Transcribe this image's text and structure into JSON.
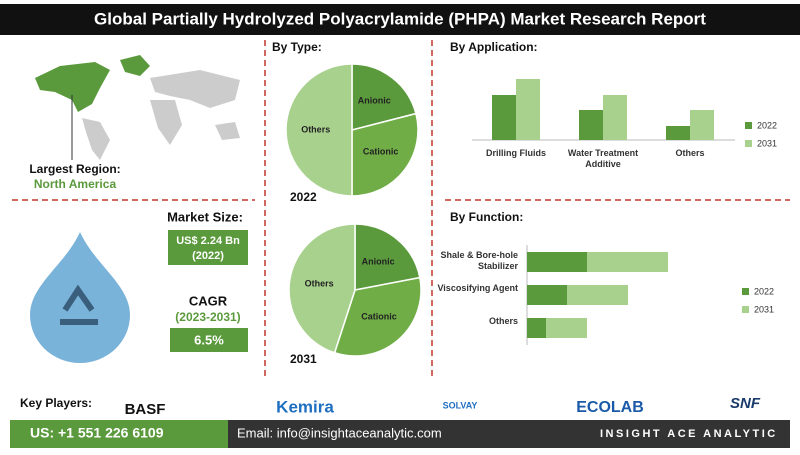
{
  "header": {
    "title": "Global Partially Hydrolyzed Polyacrylamide (PHPA) Market Research Report"
  },
  "region": {
    "label": "Largest Region:",
    "value": "North America"
  },
  "market_size": {
    "label": "Market Size:",
    "value": "US$ 2.24 Bn",
    "year": "(2022)"
  },
  "cagr": {
    "label": "CAGR",
    "period": "(2023-2031)",
    "value": "6.5%"
  },
  "chart_data": [
    {
      "type": "pie",
      "title": "By Type:",
      "year": "2022",
      "categories": [
        "Anionic",
        "Cationic",
        "Others"
      ],
      "values": [
        21,
        29,
        50
      ],
      "colors": [
        "#5a9a3c",
        "#70ad47",
        "#a9d18e"
      ]
    },
    {
      "type": "pie",
      "year": "2031",
      "categories": [
        "Anionic",
        "Cationic",
        "Others"
      ],
      "values": [
        22,
        33,
        45
      ],
      "colors": [
        "#5a9a3c",
        "#70ad47",
        "#a9d18e"
      ]
    },
    {
      "type": "bar",
      "title": "By Application:",
      "categories": [
        "Drilling Fluids",
        "Water Treatment Additive",
        "Others"
      ],
      "series": [
        {
          "name": "2022",
          "color": "#5a9a3c",
          "values": [
            45,
            30,
            14
          ]
        },
        {
          "name": "2031",
          "color": "#a9d18e",
          "values": [
            61,
            45,
            30
          ]
        }
      ]
    },
    {
      "type": "hbar-stacked",
      "title": "By Function:",
      "categories": [
        "Shale & Bore-hole Stabilizer",
        "Viscosifying Agent",
        "Others"
      ],
      "series": [
        {
          "name": "2022",
          "color": "#5a9a3c",
          "values": [
            60,
            40,
            19
          ]
        },
        {
          "name": "2031",
          "color": "#a9d18e",
          "values": [
            81,
            61,
            41
          ]
        }
      ]
    }
  ],
  "key_players": {
    "label": "Key Players:",
    "companies": [
      "BASF",
      "Kemira",
      "SOLVAY",
      "ECOLAB",
      "SNF"
    ]
  },
  "footer": {
    "phone": "US: +1 551 226 6109",
    "email": "Email: info@insightaceanalytic.com",
    "brand": "INSIGHT ACE ANALYTIC"
  }
}
